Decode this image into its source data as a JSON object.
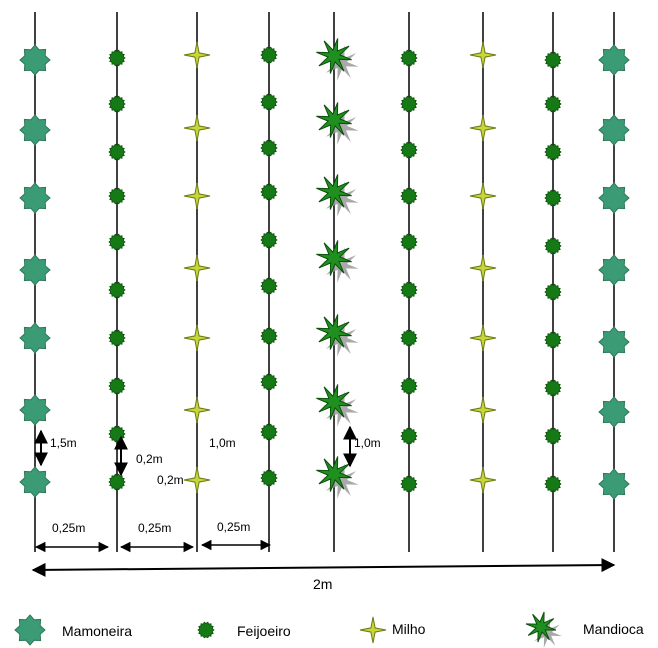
{
  "measurements": {
    "row_spacing_castor": "1,5m",
    "bean_spacing_a": "0,2m",
    "bean_spacing_b": "0,2m",
    "corn_row_spacing": "1,0m",
    "cassava_row_spacing": "1,0m",
    "gap_1": "0,25m",
    "gap_2": "0,25m",
    "gap_3": "0,25m",
    "total_width": "2m"
  },
  "legend": [
    {
      "icon": "castor-bean-icon",
      "label": "Mamoneira",
      "color": "#3a9b74"
    },
    {
      "icon": "bean-icon",
      "label": "Feijoeiro",
      "color": "#157a15"
    },
    {
      "icon": "corn-icon",
      "label": "Milho",
      "color": "#c8d63c"
    },
    {
      "icon": "cassava-icon",
      "label": "Mandioca",
      "color": "#1f8f1f"
    }
  ],
  "colors": {
    "castor": "#3a9b74",
    "bean": "#157a15",
    "corn": "#c8d63c",
    "cassava": "#1f8f1f",
    "line": "#000000"
  }
}
